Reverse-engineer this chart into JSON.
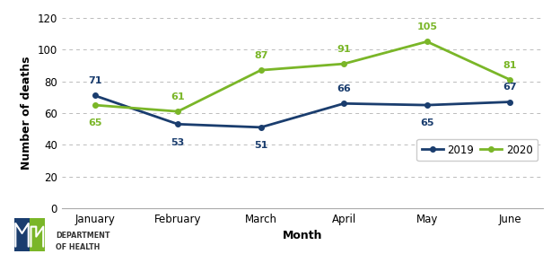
{
  "months": [
    "January",
    "February",
    "March",
    "April",
    "May",
    "June"
  ],
  "series_2019": [
    71,
    53,
    51,
    66,
    65,
    67
  ],
  "series_2020": [
    65,
    61,
    87,
    91,
    105,
    81
  ],
  "color_2019": "#1a3d6e",
  "color_2020": "#7ab628",
  "ylabel": "Number of deaths",
  "xlabel": "Month",
  "ylim": [
    0,
    120
  ],
  "yticks": [
    0,
    20,
    40,
    60,
    80,
    100,
    120
  ],
  "legend_2019": "2019",
  "legend_2020": "2020",
  "background_color": "#ffffff",
  "grid_color": "#bbbbbb",
  "label_fontsize": 8,
  "axis_label_fontsize": 9,
  "tick_fontsize": 8.5,
  "legend_fontsize": 8.5,
  "line_width": 2.0,
  "marker_size": 4,
  "label_offsets_2019": [
    8,
    -11,
    -11,
    8,
    -11,
    8
  ],
  "label_offsets_2020": [
    -11,
    8,
    8,
    8,
    8,
    8
  ]
}
